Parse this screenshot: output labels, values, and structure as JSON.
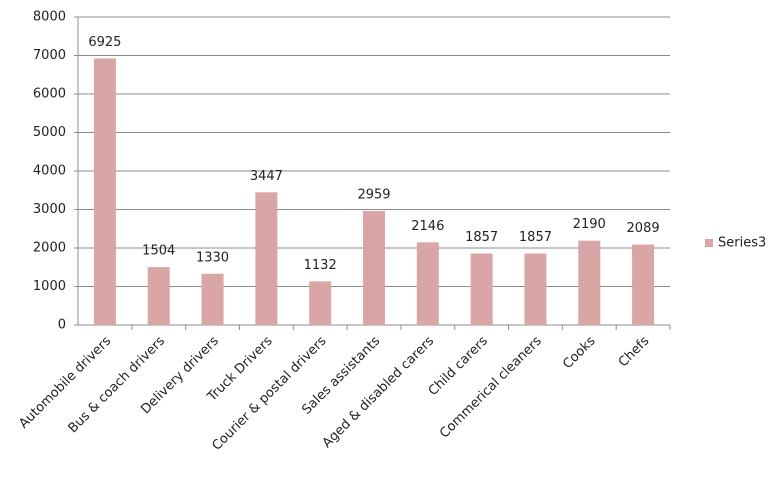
{
  "chart_data": {
    "type": "bar",
    "categories": [
      "Automobile drivers",
      "Bus & coach drivers",
      "Delivery drivers",
      "Truck Drivers",
      "Courier & postal drivers",
      "Sales assistants",
      "Aged & disabled carers",
      "Child carers",
      "Commerical cleaners",
      "Cooks",
      "Chefs"
    ],
    "series": [
      {
        "name": "Series3",
        "color": "#d9a5a5",
        "values": [
          6925,
          1504,
          1330,
          3447,
          1132,
          2959,
          2146,
          1857,
          1857,
          2190,
          2089
        ]
      }
    ],
    "ylim": [
      0,
      8000
    ],
    "yticks": [
      0,
      1000,
      2000,
      3000,
      4000,
      5000,
      6000,
      7000,
      8000
    ],
    "grid": true,
    "legend": "right"
  }
}
